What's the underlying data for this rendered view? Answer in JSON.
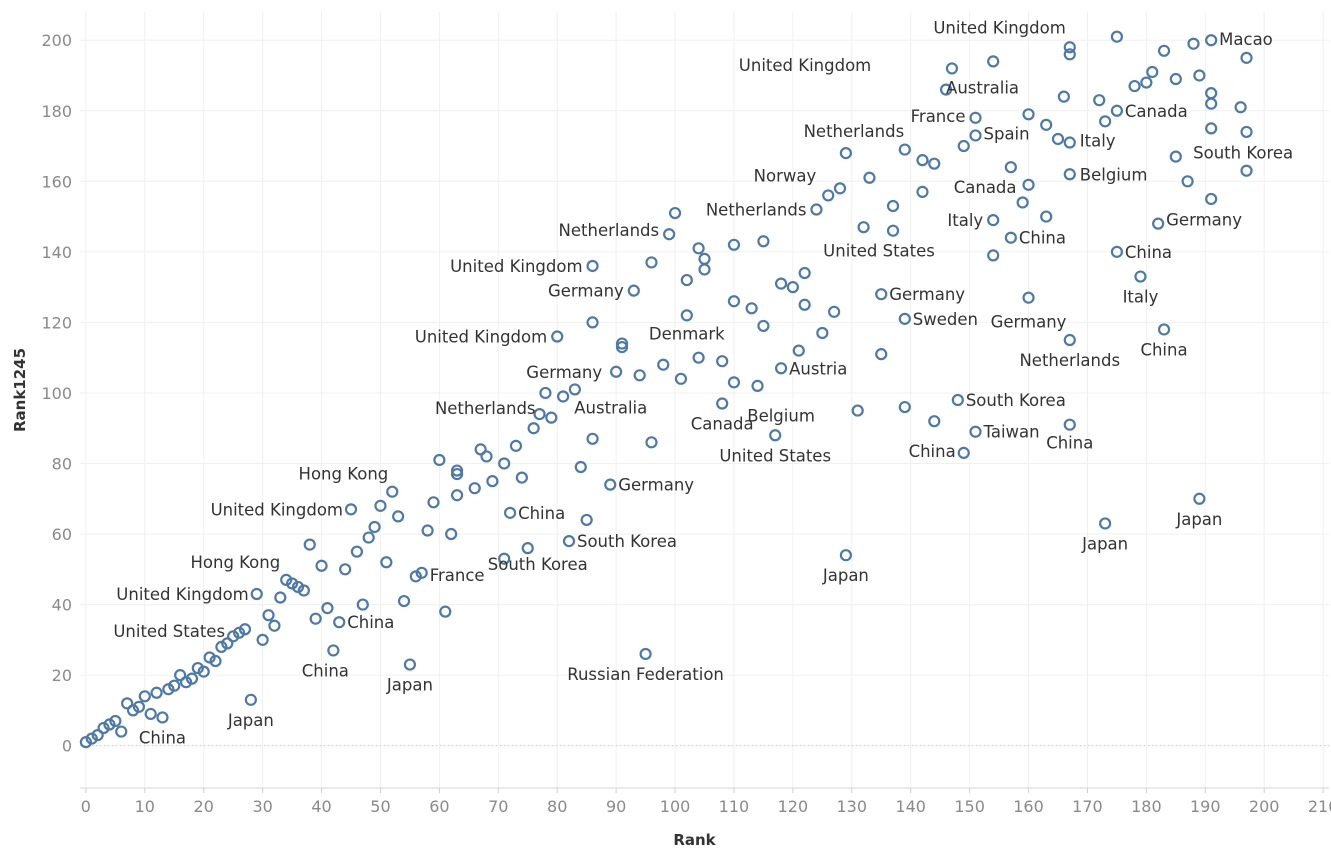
{
  "chart_data": {
    "type": "scatter",
    "xlabel": "Rank",
    "ylabel": "Rank1245",
    "xlim": [
      -1,
      211
    ],
    "ylim": [
      -12,
      208
    ],
    "x_ticks": [
      "0",
      "10",
      "20",
      "30",
      "40",
      "50",
      "60",
      "70",
      "80",
      "90",
      "100",
      "110",
      "120",
      "130",
      "140",
      "150",
      "160",
      "170",
      "180",
      "190",
      "200",
      "210"
    ],
    "y_ticks": [
      "0",
      "20",
      "40",
      "60",
      "80",
      "100",
      "120",
      "140",
      "160",
      "180",
      "200"
    ],
    "grid": true,
    "zero_line": "dotted",
    "marker_color": "#4e79a7",
    "points": [
      [
        0,
        1
      ],
      [
        1,
        2
      ],
      [
        2,
        3
      ],
      [
        3,
        5
      ],
      [
        4,
        6
      ],
      [
        5,
        7
      ],
      [
        6,
        4
      ],
      [
        7,
        12
      ],
      [
        8,
        10
      ],
      [
        9,
        11
      ],
      [
        10,
        14
      ],
      [
        11,
        9
      ],
      [
        12,
        15
      ],
      [
        13,
        8
      ],
      [
        14,
        16
      ],
      [
        15,
        17
      ],
      [
        16,
        20
      ],
      [
        17,
        18
      ],
      [
        18,
        19
      ],
      [
        19,
        22
      ],
      [
        20,
        21
      ],
      [
        21,
        25
      ],
      [
        22,
        24
      ],
      [
        23,
        28
      ],
      [
        24,
        29
      ],
      [
        25,
        31
      ],
      [
        26,
        32
      ],
      [
        27,
        33
      ],
      [
        28,
        13
      ],
      [
        29,
        43
      ],
      [
        30,
        30
      ],
      [
        31,
        37
      ],
      [
        32,
        34
      ],
      [
        33,
        42
      ],
      [
        34,
        47
      ],
      [
        35,
        46
      ],
      [
        36,
        45
      ],
      [
        37,
        44
      ],
      [
        38,
        57
      ],
      [
        39,
        36
      ],
      [
        40,
        51
      ],
      [
        41,
        39
      ],
      [
        42,
        27
      ],
      [
        43,
        35
      ],
      [
        44,
        50
      ],
      [
        45,
        67
      ],
      [
        46,
        55
      ],
      [
        47,
        40
      ],
      [
        48,
        59
      ],
      [
        49,
        62
      ],
      [
        50,
        68
      ],
      [
        51,
        52
      ],
      [
        52,
        72
      ],
      [
        53,
        65
      ],
      [
        54,
        41
      ],
      [
        55,
        23
      ],
      [
        56,
        48
      ],
      [
        57,
        49
      ],
      [
        58,
        61
      ],
      [
        59,
        69
      ],
      [
        60,
        81
      ],
      [
        61,
        38
      ],
      [
        62,
        60
      ],
      [
        63,
        71
      ],
      [
        63,
        77
      ],
      [
        63,
        78
      ],
      [
        66,
        73
      ],
      [
        67,
        84
      ],
      [
        68,
        82
      ],
      [
        69,
        75
      ],
      [
        71,
        53
      ],
      [
        71,
        80
      ],
      [
        72,
        66
      ],
      [
        73,
        85
      ],
      [
        74,
        76
      ],
      [
        75,
        56
      ],
      [
        76,
        90
      ],
      [
        77,
        94
      ],
      [
        78,
        100
      ],
      [
        79,
        93
      ],
      [
        80,
        116
      ],
      [
        81,
        99
      ],
      [
        82,
        58
      ],
      [
        83,
        101
      ],
      [
        84,
        79
      ],
      [
        85,
        64
      ],
      [
        86,
        87
      ],
      [
        86,
        120
      ],
      [
        86,
        136
      ],
      [
        89,
        74
      ],
      [
        90,
        106
      ],
      [
        91,
        114
      ],
      [
        91,
        113
      ],
      [
        93,
        129
      ],
      [
        94,
        105
      ],
      [
        95,
        26
      ],
      [
        96,
        86
      ],
      [
        96,
        137
      ],
      [
        98,
        108
      ],
      [
        99,
        145
      ],
      [
        100,
        151
      ],
      [
        101,
        104
      ],
      [
        102,
        122
      ],
      [
        102,
        132
      ],
      [
        104,
        110
      ],
      [
        104,
        141
      ],
      [
        105,
        138
      ],
      [
        105,
        135
      ],
      [
        108,
        109
      ],
      [
        108,
        97
      ],
      [
        110,
        103
      ],
      [
        110,
        126
      ],
      [
        110,
        142
      ],
      [
        113,
        124
      ],
      [
        114,
        102
      ],
      [
        115,
        119
      ],
      [
        115,
        143
      ],
      [
        117,
        88
      ],
      [
        118,
        107
      ],
      [
        118,
        131
      ],
      [
        120,
        130
      ],
      [
        121,
        112
      ],
      [
        122,
        125
      ],
      [
        122,
        134
      ],
      [
        124,
        152
      ],
      [
        125,
        117
      ],
      [
        126,
        156
      ],
      [
        127,
        123
      ],
      [
        128,
        158
      ],
      [
        129,
        54
      ],
      [
        129,
        168
      ],
      [
        131,
        95
      ],
      [
        132,
        147
      ],
      [
        133,
        161
      ],
      [
        135,
        111
      ],
      [
        135,
        128
      ],
      [
        137,
        153
      ],
      [
        137,
        146
      ],
      [
        139,
        96
      ],
      [
        139,
        121
      ],
      [
        139,
        169
      ],
      [
        142,
        166
      ],
      [
        142,
        157
      ],
      [
        144,
        165
      ],
      [
        144,
        92
      ],
      [
        146,
        186
      ],
      [
        147,
        192
      ],
      [
        148,
        98
      ],
      [
        149,
        83
      ],
      [
        149,
        170
      ],
      [
        151,
        89
      ],
      [
        151,
        173
      ],
      [
        151,
        178
      ],
      [
        154,
        149
      ],
      [
        154,
        139
      ],
      [
        154,
        194
      ],
      [
        157,
        144
      ],
      [
        157,
        164
      ],
      [
        159,
        154
      ],
      [
        160,
        159
      ],
      [
        160,
        179
      ],
      [
        160,
        127
      ],
      [
        163,
        150
      ],
      [
        163,
        176
      ],
      [
        165,
        172
      ],
      [
        166,
        184
      ],
      [
        167,
        171
      ],
      [
        167,
        162
      ],
      [
        167,
        196
      ],
      [
        167,
        115
      ],
      [
        167,
        91
      ],
      [
        167,
        198
      ],
      [
        172,
        183
      ],
      [
        173,
        63
      ],
      [
        173,
        177
      ],
      [
        175,
        201
      ],
      [
        175,
        180
      ],
      [
        175,
        140
      ],
      [
        178,
        187
      ],
      [
        179,
        133
      ],
      [
        180,
        188
      ],
      [
        181,
        191
      ],
      [
        182,
        148
      ],
      [
        183,
        118
      ],
      [
        183,
        197
      ],
      [
        185,
        167
      ],
      [
        185,
        189
      ],
      [
        187,
        160
      ],
      [
        188,
        199
      ],
      [
        189,
        70
      ],
      [
        189,
        190
      ],
      [
        191,
        155
      ],
      [
        191,
        200
      ],
      [
        191,
        185
      ],
      [
        191,
        182
      ],
      [
        191,
        175
      ],
      [
        196,
        181
      ],
      [
        197,
        174
      ],
      [
        197,
        163
      ],
      [
        197,
        195
      ]
    ],
    "annotations": [
      {
        "text": "United Kingdom",
        "x": 167,
        "y": 198,
        "dx": -4,
        "dy": -14,
        "anchor": "end"
      },
      {
        "text": "Macao",
        "x": 191,
        "y": 200,
        "dx": 8,
        "dy": 5,
        "anchor": "start"
      },
      {
        "text": "United Kingdom",
        "x": 135,
        "y": 193,
        "dx": -10,
        "dy": 6,
        "anchor": "end"
      },
      {
        "text": "Australia",
        "x": 146,
        "y": 186,
        "dx": 0,
        "dy": 4,
        "anchor": "start"
      },
      {
        "text": "France",
        "x": 151,
        "y": 178,
        "dx": -10,
        "dy": 4,
        "anchor": "end"
      },
      {
        "text": "Canada",
        "x": 175,
        "y": 180,
        "dx": 8,
        "dy": 6,
        "anchor": "start"
      },
      {
        "text": "Netherlands",
        "x": 129,
        "y": 168,
        "dx": 8,
        "dy": -16,
        "anchor": "middle"
      },
      {
        "text": "Spain",
        "x": 151,
        "y": 173,
        "dx": 8,
        "dy": 4,
        "anchor": "start"
      },
      {
        "text": "Italy",
        "x": 167,
        "y": 171,
        "dx": 10,
        "dy": 4,
        "anchor": "start"
      },
      {
        "text": "South Korea",
        "x": 191,
        "y": 175,
        "dx": -18,
        "dy": 30,
        "anchor": "start"
      },
      {
        "text": "Norway",
        "x": 126,
        "y": 156,
        "dx": -12,
        "dy": -14,
        "anchor": "end"
      },
      {
        "text": "Canada",
        "x": 160,
        "y": 159,
        "dx": -12,
        "dy": 8,
        "anchor": "end"
      },
      {
        "text": "Belgium",
        "x": 167,
        "y": 162,
        "dx": 10,
        "dy": 6,
        "anchor": "start"
      },
      {
        "text": "Netherlands",
        "x": 124,
        "y": 152,
        "dx": -10,
        "dy": 6,
        "anchor": "end"
      },
      {
        "text": "Italy",
        "x": 154,
        "y": 149,
        "dx": -10,
        "dy": 6,
        "anchor": "end"
      },
      {
        "text": "Germany",
        "x": 182,
        "y": 148,
        "dx": 8,
        "dy": 2,
        "anchor": "start"
      },
      {
        "text": "Netherlands",
        "x": 99,
        "y": 145,
        "dx": -10,
        "dy": 2,
        "anchor": "end"
      },
      {
        "text": "China",
        "x": 157,
        "y": 144,
        "dx": 8,
        "dy": 6,
        "anchor": "start"
      },
      {
        "text": "United States",
        "x": 137,
        "y": 146,
        "dx": -14,
        "dy": 26,
        "anchor": "middle"
      },
      {
        "text": "China",
        "x": 175,
        "y": 140,
        "dx": 8,
        "dy": 6,
        "anchor": "start"
      },
      {
        "text": "United Kingdom",
        "x": 86,
        "y": 136,
        "dx": -10,
        "dy": 6,
        "anchor": "end"
      },
      {
        "text": "Germany",
        "x": 93,
        "y": 129,
        "dx": -10,
        "dy": 6,
        "anchor": "end"
      },
      {
        "text": "Italy",
        "x": 179,
        "y": 133,
        "dx": 0,
        "dy": 26,
        "anchor": "middle"
      },
      {
        "text": "Germany",
        "x": 135,
        "y": 128,
        "dx": 8,
        "dy": 6,
        "anchor": "start"
      },
      {
        "text": "Sweden",
        "x": 139,
        "y": 121,
        "dx": 8,
        "dy": 6,
        "anchor": "start"
      },
      {
        "text": "Germany",
        "x": 160,
        "y": 127,
        "dx": 0,
        "dy": 30,
        "anchor": "middle"
      },
      {
        "text": "United Kingdom",
        "x": 80,
        "y": 116,
        "dx": -10,
        "dy": 6,
        "anchor": "end"
      },
      {
        "text": "Denmark",
        "x": 102,
        "y": 122,
        "dx": 0,
        "dy": 24,
        "anchor": "middle"
      },
      {
        "text": "China",
        "x": 183,
        "y": 118,
        "dx": 0,
        "dy": 26,
        "anchor": "middle"
      },
      {
        "text": "Netherlands",
        "x": 167,
        "y": 115,
        "dx": 0,
        "dy": 26,
        "anchor": "middle"
      },
      {
        "text": "Germany",
        "x": 90,
        "y": 106,
        "dx": -14,
        "dy": 6,
        "anchor": "end"
      },
      {
        "text": "Austria",
        "x": 118,
        "y": 107,
        "dx": 8,
        "dy": 6,
        "anchor": "start"
      },
      {
        "text": "Australia",
        "x": 84,
        "y": 101,
        "dx": 30,
        "dy": 24,
        "anchor": "middle"
      },
      {
        "text": "Netherlands",
        "x": 77,
        "y": 94,
        "dx": -4,
        "dy": 0,
        "anchor": "end"
      },
      {
        "text": "Belgium",
        "x": 118,
        "y": 97,
        "dx": 0,
        "dy": 18,
        "anchor": "middle"
      },
      {
        "text": "South Korea",
        "x": 148,
        "y": 98,
        "dx": 8,
        "dy": 6,
        "anchor": "start"
      },
      {
        "text": "Canada",
        "x": 108,
        "y": 97,
        "dx": 0,
        "dy": 26,
        "anchor": "middle"
      },
      {
        "text": "Taiwan",
        "x": 151,
        "y": 89,
        "dx": 8,
        "dy": 6,
        "anchor": "start"
      },
      {
        "text": "China",
        "x": 167,
        "y": 91,
        "dx": 0,
        "dy": 24,
        "anchor": "middle"
      },
      {
        "text": "United States",
        "x": 117,
        "y": 88,
        "dx": 0,
        "dy": 26,
        "anchor": "middle"
      },
      {
        "text": "China",
        "x": 149,
        "y": 83,
        "dx": -8,
        "dy": 4,
        "anchor": "end"
      },
      {
        "text": "Hong Kong",
        "x": 52,
        "y": 72,
        "dx": -4,
        "dy": -12,
        "anchor": "end"
      },
      {
        "text": "Germany",
        "x": 89,
        "y": 74,
        "dx": 8,
        "dy": 6,
        "anchor": "start"
      },
      {
        "text": "United Kingdom",
        "x": 45,
        "y": 67,
        "dx": -8,
        "dy": 6,
        "anchor": "end"
      },
      {
        "text": "China",
        "x": 72,
        "y": 66,
        "dx": 8,
        "dy": 6,
        "anchor": "start"
      },
      {
        "text": "South Korea",
        "x": 82,
        "y": 58,
        "dx": 8,
        "dy": 6,
        "anchor": "start"
      },
      {
        "text": "Japan",
        "x": 173,
        "y": 63,
        "dx": 0,
        "dy": 26,
        "anchor": "middle"
      },
      {
        "text": "Japan",
        "x": 189,
        "y": 70,
        "dx": 0,
        "dy": 26,
        "anchor": "middle"
      },
      {
        "text": "Hong Kong",
        "x": 34,
        "y": 47,
        "dx": -6,
        "dy": -12,
        "anchor": "end"
      },
      {
        "text": "South Korea",
        "x": 75,
        "y": 56,
        "dx": 10,
        "dy": 22,
        "anchor": "middle"
      },
      {
        "text": "Japan",
        "x": 129,
        "y": 54,
        "dx": 0,
        "dy": 26,
        "anchor": "middle"
      },
      {
        "text": "France",
        "x": 57,
        "y": 49,
        "dx": 8,
        "dy": 8,
        "anchor": "start"
      },
      {
        "text": "United Kingdom",
        "x": 29,
        "y": 43,
        "dx": -8,
        "dy": 6,
        "anchor": "end"
      },
      {
        "text": "China",
        "x": 43,
        "y": 35,
        "dx": 8,
        "dy": 6,
        "anchor": "start"
      },
      {
        "text": "United States",
        "x": 26,
        "y": 32,
        "dx": -14,
        "dy": 4,
        "anchor": "end"
      },
      {
        "text": "China",
        "x": 42,
        "y": 27,
        "dx": -8,
        "dy": 26,
        "anchor": "middle"
      },
      {
        "text": "Japan",
        "x": 55,
        "y": 23,
        "dx": 0,
        "dy": 26,
        "anchor": "middle"
      },
      {
        "text": "Russian Federation",
        "x": 95,
        "y": 26,
        "dx": 0,
        "dy": 26,
        "anchor": "middle"
      },
      {
        "text": "Japan",
        "x": 28,
        "y": 13,
        "dx": 0,
        "dy": 26,
        "anchor": "middle"
      },
      {
        "text": "China",
        "x": 13,
        "y": 8,
        "dx": 0,
        "dy": 26,
        "anchor": "middle"
      }
    ]
  }
}
